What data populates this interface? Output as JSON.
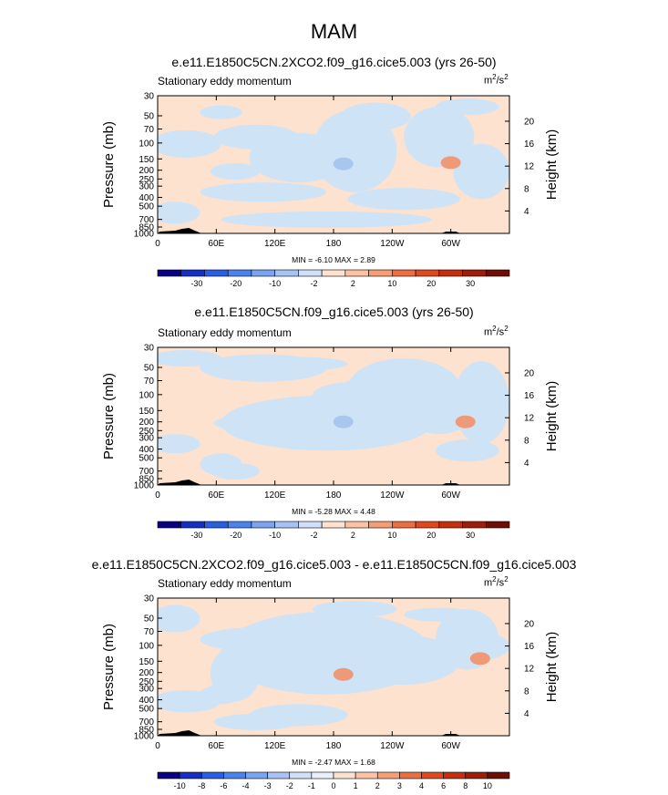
{
  "figure": {
    "title": "MAM"
  },
  "panels": [
    {
      "title": "e.e11.E1850C5CN.2XCO2.f09_g16.cice5.003 (yrs 26-50)",
      "variable": "Stationary eddy momentum",
      "units": "m²/s²",
      "minmax": "MIN =  -6.10  MAX =   2.89"
    },
    {
      "title": "e.e11.E1850C5CN.f09_g16.cice5.003 (yrs 26-50)",
      "variable": "Stationary eddy momentum",
      "units": "m²/s²",
      "minmax": "MIN =  -5.28  MAX =   4.48"
    },
    {
      "title": "e.e11.E1850C5CN.2XCO2.f09_g16.cice5.003 - e.e11.E1850C5CN.f09_g16.cice5.003",
      "variable": "Stationary eddy momentum",
      "units": "m²/s²",
      "minmax": "MIN =  -2.47  MAX =   1.68"
    }
  ],
  "colors": {
    "background_field": "#fde2cf",
    "neg_weak": "#cfe3f7",
    "neg_mid": "#a9c6ef",
    "pos_mid": "#f6b090",
    "pos_strong": "#ee9a78",
    "topography": "#000000"
  },
  "chart_data": [
    {
      "type": "heatmap",
      "title": "e.e11.E1850C5CN.2XCO2.f09_g16.cice5.003 (yrs 26-50)",
      "subtitle": "Stationary eddy momentum",
      "units": "m²/s²",
      "xlabel": "",
      "ylabel": "Pressure (mb)",
      "ylabel_right": "Height (km)",
      "x_ticks": [
        "0",
        "60E",
        "120E",
        "180",
        "120W",
        "60W"
      ],
      "xlim": [
        0,
        360
      ],
      "y_ticks": [
        30,
        50,
        70,
        100,
        150,
        200,
        250,
        300,
        400,
        500,
        700,
        850,
        1000
      ],
      "ylim": [
        1000,
        30
      ],
      "yscale": "log",
      "right_ticks_km": [
        4,
        8,
        12,
        16,
        20
      ],
      "colorbar_levels": [
        "-30",
        "-20",
        "-10",
        "-2",
        "2",
        "10",
        "20",
        "30"
      ],
      "colorbar_colors": [
        "#080080",
        "#1530c0",
        "#2a5fe0",
        "#4c82ec",
        "#7aa3f0",
        "#a6c3f3",
        "#cfe0f8",
        "#fde2cf",
        "#fbc3a3",
        "#f59d74",
        "#ec6e43",
        "#de4a1f",
        "#c3300f",
        "#9c1f0a",
        "#6e0f05"
      ],
      "min": -6.1,
      "max": 2.89,
      "features": [
        {
          "lon": 190,
          "p": 170,
          "sign": "negative",
          "strength": "weak-mid"
        },
        {
          "lon": 300,
          "p": 165,
          "sign": "positive",
          "strength": "mid"
        }
      ],
      "grid": false
    },
    {
      "type": "heatmap",
      "title": "e.e11.E1850C5CN.f09_g16.cice5.003 (yrs 26-50)",
      "subtitle": "Stationary eddy momentum",
      "units": "m²/s²",
      "xlabel": "",
      "ylabel": "Pressure (mb)",
      "ylabel_right": "Height (km)",
      "x_ticks": [
        "0",
        "60E",
        "120E",
        "180",
        "120W",
        "60W"
      ],
      "xlim": [
        0,
        360
      ],
      "y_ticks": [
        30,
        50,
        70,
        100,
        150,
        200,
        250,
        300,
        400,
        500,
        700,
        850,
        1000
      ],
      "ylim": [
        1000,
        30
      ],
      "yscale": "log",
      "right_ticks_km": [
        4,
        8,
        12,
        16,
        20
      ],
      "colorbar_levels": [
        "-30",
        "-20",
        "-10",
        "-2",
        "2",
        "10",
        "20",
        "30"
      ],
      "colorbar_colors": [
        "#080080",
        "#1530c0",
        "#2a5fe0",
        "#4c82ec",
        "#7aa3f0",
        "#a6c3f3",
        "#cfe0f8",
        "#fde2cf",
        "#fbc3a3",
        "#f59d74",
        "#ec6e43",
        "#de4a1f",
        "#c3300f",
        "#9c1f0a",
        "#6e0f05"
      ],
      "min": -5.28,
      "max": 4.48,
      "features": [
        {
          "lon": 190,
          "p": 200,
          "sign": "negative",
          "strength": "weak-mid"
        },
        {
          "lon": 315,
          "p": 200,
          "sign": "positive",
          "strength": "mid"
        }
      ],
      "grid": false
    },
    {
      "type": "heatmap",
      "title": "e.e11.E1850C5CN.2XCO2.f09_g16.cice5.003 - e.e11.E1850C5CN.f09_g16.cice5.003",
      "subtitle": "Stationary eddy momentum",
      "units": "m²/s²",
      "xlabel": "",
      "ylabel": "Pressure (mb)",
      "ylabel_right": "Height (km)",
      "x_ticks": [
        "0",
        "60E",
        "120E",
        "180",
        "120W",
        "60W"
      ],
      "xlim": [
        0,
        360
      ],
      "y_ticks": [
        30,
        50,
        70,
        100,
        150,
        200,
        250,
        300,
        400,
        500,
        700,
        850,
        1000
      ],
      "ylim": [
        1000,
        30
      ],
      "yscale": "log",
      "right_ticks_km": [
        4,
        8,
        12,
        16,
        20
      ],
      "colorbar_levels": [
        "-10",
        "-8",
        "-6",
        "-4",
        "-3",
        "-2",
        "-1",
        "0",
        "1",
        "2",
        "3",
        "4",
        "6",
        "8",
        "10"
      ],
      "colorbar_colors": [
        "#080080",
        "#1530c0",
        "#2a5fe0",
        "#4c82ec",
        "#7aa3f0",
        "#a6c3f3",
        "#cfe0f8",
        "#e8f0fb",
        "#fde2cf",
        "#fbc3a3",
        "#f59d74",
        "#ec6e43",
        "#de4a1f",
        "#c3300f",
        "#9c1f0a",
        "#6e0f05"
      ],
      "min": -2.47,
      "max": 1.68,
      "features": [
        {
          "lon": 190,
          "p": 210,
          "sign": "positive",
          "strength": "mid"
        },
        {
          "lon": 330,
          "p": 140,
          "sign": "positive",
          "strength": "mid"
        }
      ],
      "grid": false
    }
  ]
}
